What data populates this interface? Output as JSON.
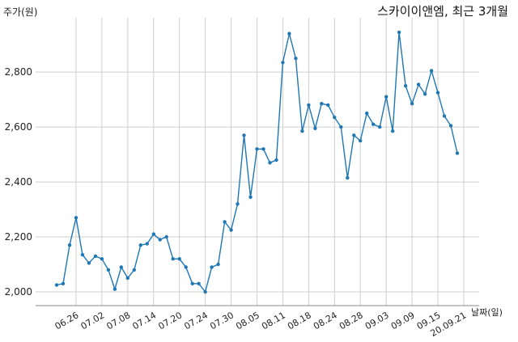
{
  "chart_data": {
    "type": "line",
    "title": "스카이이앤엠, 최근 3개월",
    "ylabel": "주가(원)",
    "xlabel": "날짜(일)",
    "ylim": [
      1950,
      3000
    ],
    "y_ticks": [
      2000,
      2200,
      2400,
      2600,
      2800
    ],
    "y_tick_labels": [
      "2,000",
      "2,200",
      "2,400",
      "2,600",
      "2,800"
    ],
    "x_tick_labels": [
      "06.26",
      "07.02",
      "07.08",
      "07.14",
      "07.20",
      "07.24",
      "07.30",
      "08.05",
      "08.11",
      "08.18",
      "08.24",
      "08.28",
      "09.03",
      "09.09",
      "09.15",
      "20.09.21"
    ],
    "x_tick_indices": [
      3,
      7,
      11,
      15,
      19,
      23,
      27,
      31,
      35,
      39,
      43,
      47,
      51,
      55,
      59,
      63
    ],
    "grid": true,
    "color": "#1f77b4",
    "series": [
      {
        "values": [
          2025,
          2030,
          2170,
          2270,
          2135,
          2105,
          2130,
          2120,
          2080,
          2010,
          2090,
          2050,
          2080,
          2170,
          2175,
          2210,
          2190,
          2200,
          2120,
          2120,
          2090,
          2030,
          2030,
          2000,
          2090,
          2100,
          2255,
          2225,
          2320,
          2570,
          2345,
          2520,
          2520,
          2470,
          2480,
          2835,
          2940,
          2850,
          2585,
          2680,
          2595,
          2685,
          2680,
          2635,
          2600,
          2415,
          2570,
          2550,
          2650,
          2610,
          2600,
          2710,
          2585,
          2945,
          2750,
          2685,
          2755,
          2720,
          2805,
          2725,
          2640,
          2605,
          2505
        ]
      }
    ]
  }
}
